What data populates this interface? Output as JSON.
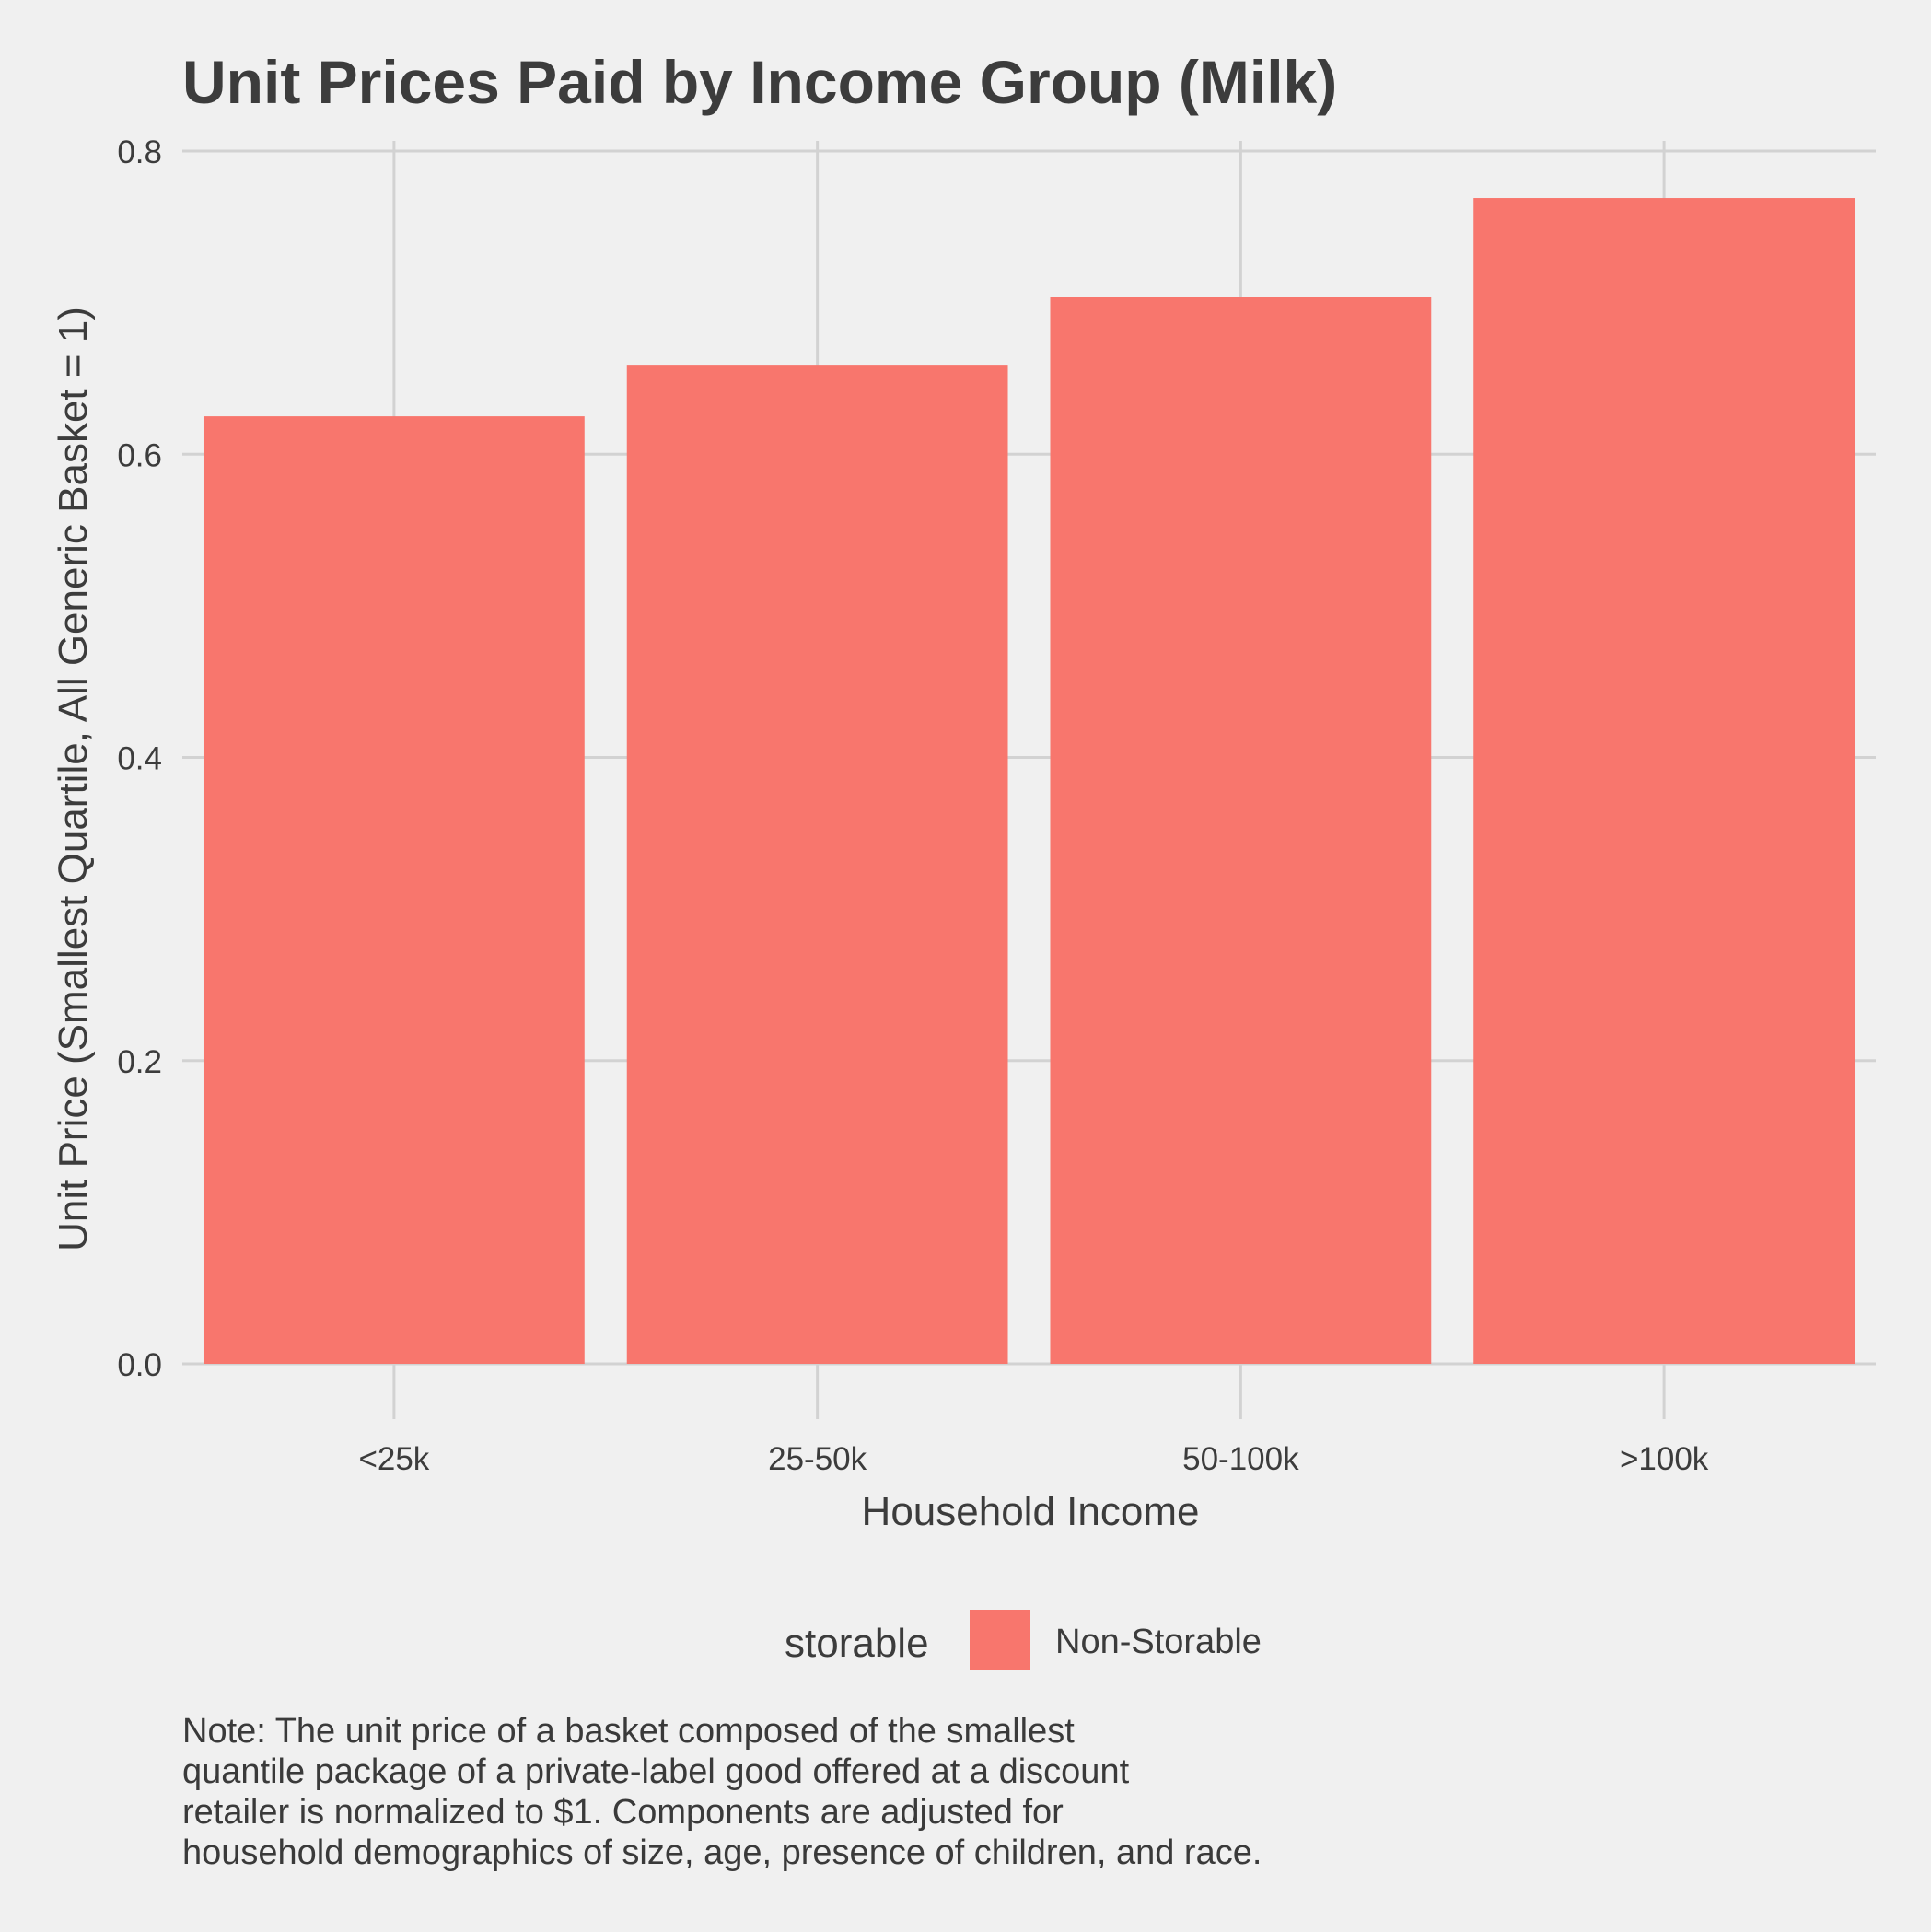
{
  "chart_data": {
    "type": "bar",
    "title": "Unit Prices Paid by Income Group (Milk)",
    "xlabel": "Household Income",
    "ylabel": "Unit Price (Smallest Quartile, All Generic Basket = 1)",
    "categories": [
      "<25k",
      "25-50k",
      "50-100k",
      ">100k"
    ],
    "series": [
      {
        "name": "Non-Storable",
        "values": [
          0.625,
          0.659,
          0.704,
          0.769
        ],
        "color": "#f8766d"
      }
    ],
    "ylim": [
      0,
      0.8
    ],
    "yticks": [
      "0.0",
      "0.2",
      "0.4",
      "0.6",
      "0.8"
    ],
    "ytick_values": [
      0,
      0.2,
      0.4,
      0.6,
      0.8
    ],
    "grid": true,
    "legend": {
      "title": "storable",
      "placement": "bottom",
      "entries": [
        {
          "label": "Non-Storable",
          "color": "#f8766d"
        }
      ]
    }
  },
  "note_lines": [
    "Note: The unit price of a basket composed of the smallest",
    "quantile package of a private-label good offered at a discount",
    "retailer is normalized to $1. Components are adjusted for",
    "household demographics of size, age, presence of children, and race."
  ],
  "colors": {
    "background": "#f0f0f0",
    "grid": "#d2d2d2",
    "text": "#3c3c3c",
    "bar": "#f8766d"
  }
}
